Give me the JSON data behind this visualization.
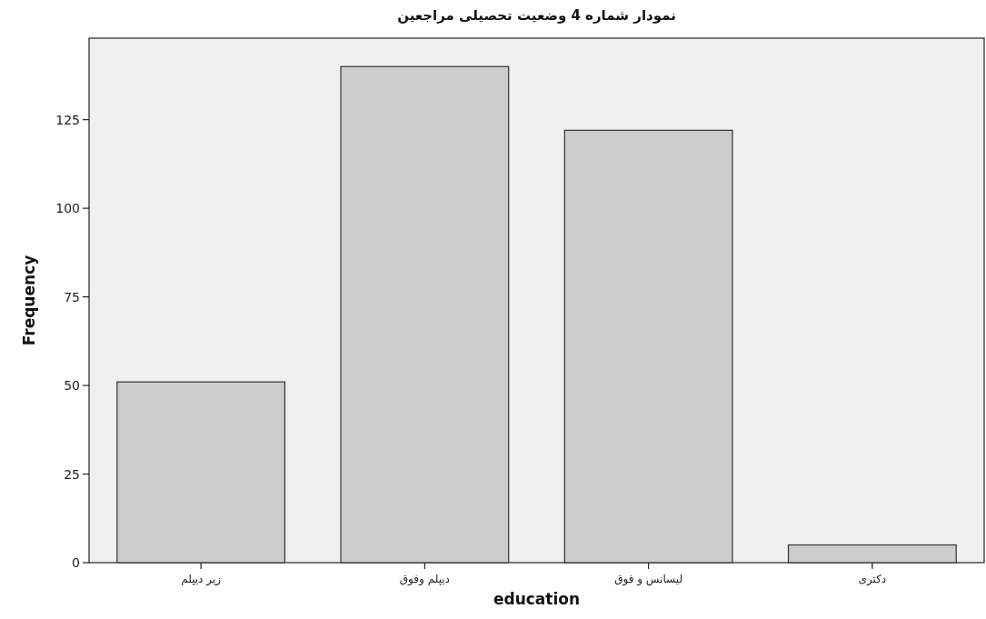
{
  "chart_data": {
    "type": "bar",
    "title": "نمودار شماره 4 وضعیت تحصیلی مراجعین",
    "xlabel": "education",
    "ylabel": "Frequency",
    "categories": [
      "زیر دیپلم",
      "دیپلم وفوق",
      "لیسانس و فوق",
      "دکتری"
    ],
    "values": [
      51,
      140,
      122,
      5
    ],
    "color": "#cccccc",
    "ylim": [
      0,
      148
    ],
    "yticks": [
      0,
      25,
      50,
      75,
      100,
      125
    ]
  }
}
